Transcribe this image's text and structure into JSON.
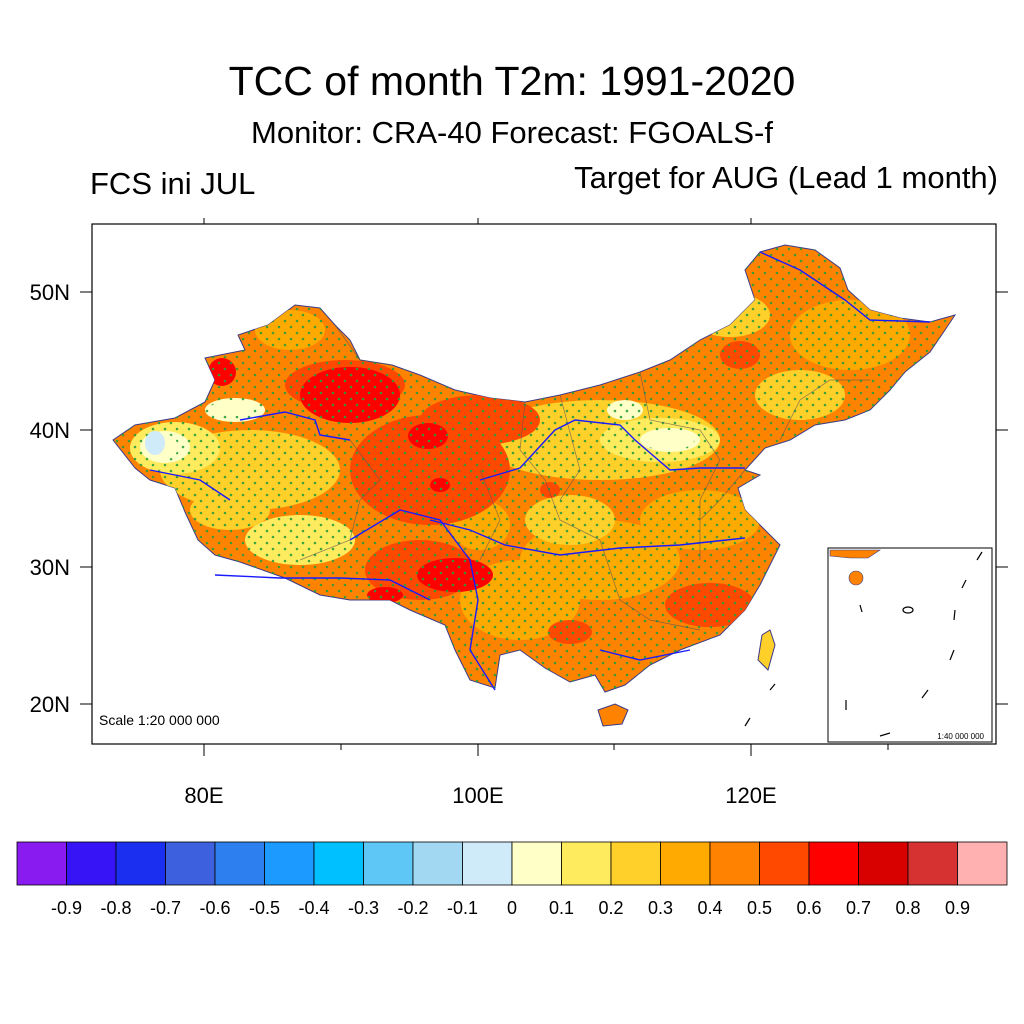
{
  "title": "TCC of month T2m: 1991-2020",
  "subtitle": "Monitor: CRA-40   Forecast: FGOALS-f",
  "left_label": "FCS ini JUL",
  "right_label": "Target for AUG (Lead 1 month)",
  "scale_main": "Scale 1:20 000 000",
  "scale_inset": "1:40 000 000",
  "lat_labels": [
    "50N",
    "40N",
    "30N",
    "20N"
  ],
  "lon_labels": [
    "80E",
    "100E",
    "120E"
  ],
  "colorbar": {
    "colors": [
      "#8a1bf0",
      "#3714f5",
      "#1a2ff0",
      "#3d61de",
      "#2d7ff0",
      "#1c9aff",
      "#00c0ff",
      "#5ec7f5",
      "#a3d8f2",
      "#cfeaf8",
      "#ffffc8",
      "#ffeb5e",
      "#ffcf2a",
      "#ffaa00",
      "#ff8300",
      "#ff4800",
      "#ff0000",
      "#d90000",
      "#d73232",
      "#ffb0b0"
    ],
    "labels": [
      "-0.9",
      "-0.8",
      "-0.7",
      "-0.6",
      "-0.5",
      "-0.4",
      "-0.3",
      "-0.2",
      "-0.1",
      "0",
      "0.1",
      "0.2",
      "0.3",
      "0.4",
      "0.5",
      "0.6",
      "0.7",
      "0.8",
      "0.9"
    ]
  },
  "colors": {
    "base_fill": "#ff8300",
    "river": "#1a1aff",
    "stipple": "#2a9d3a",
    "border": "#444444"
  }
}
